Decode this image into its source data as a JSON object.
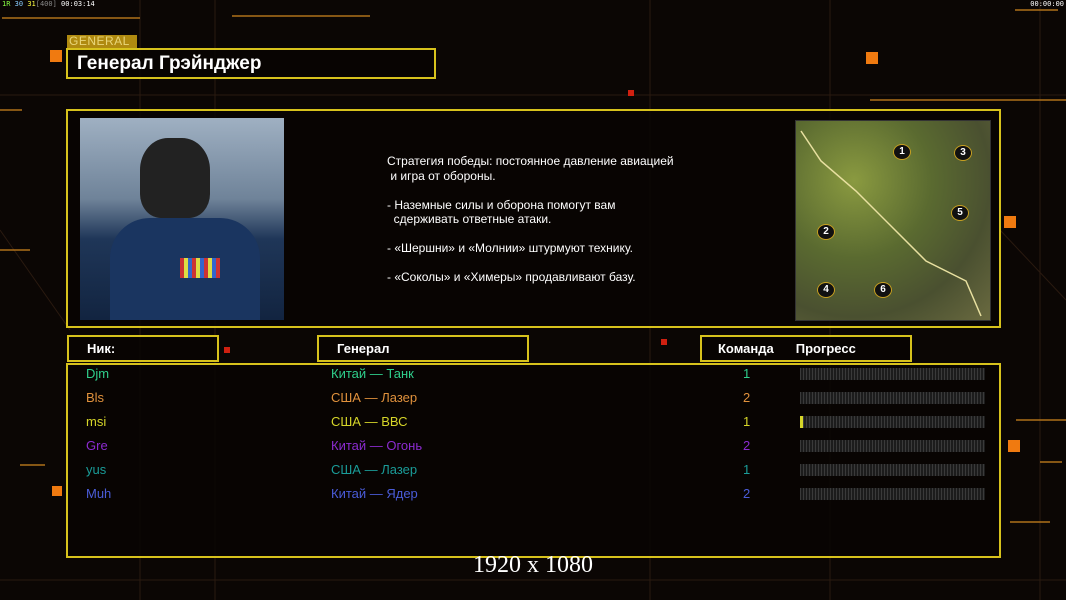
{
  "hud": {
    "left_a": "1R",
    "left_b": "30",
    "left_c": "31",
    "left_d": "[400]",
    "left_time": "00:03:14",
    "right_time": "00:00:00"
  },
  "general_tag": "GENERAL",
  "title": "Генерал Грэйнджер",
  "description": "Стратегия победы: постоянное давление авиацией\n и игра от обороны.\n\n- Наземные силы и оборона помогут вам\n  сдерживать ответные атаки.\n\n- «Шершни» и «Молнии» штурмуют технику.\n\n- «Соколы» и «Химеры» продавливают базу.",
  "map_spawns": [
    "1",
    "2",
    "3",
    "4",
    "5",
    "6"
  ],
  "headers": {
    "nick": "Ник:",
    "general": "Генерал",
    "team": "Команда",
    "progress": "Прогресс"
  },
  "players": [
    {
      "nick": "Djm",
      "general": "Китай — Танк",
      "team": "1",
      "progress": 0,
      "color": "#2fcf8c"
    },
    {
      "nick": "Bls",
      "general": "США — Лазер",
      "team": "2",
      "progress": 0,
      "color": "#e0913c"
    },
    {
      "nick": "msi",
      "general": "США — ВВС",
      "team": "1",
      "progress": 1,
      "color": "#d6d629"
    },
    {
      "nick": "Gre",
      "general": "Китай — Огонь",
      "team": "2",
      "progress": 0,
      "color": "#8b2bd0"
    },
    {
      "nick": "yus",
      "general": "США — Лазер",
      "team": "1",
      "progress": 0,
      "color": "#1a9c98"
    },
    {
      "nick": "Muh",
      "general": "Китай — Ядер",
      "team": "2",
      "progress": 0,
      "color": "#4a5cd8"
    }
  ],
  "resolution": "1920 x 1080",
  "colors": {
    "frame": "#d7c21c",
    "accent": "#f07a10"
  }
}
